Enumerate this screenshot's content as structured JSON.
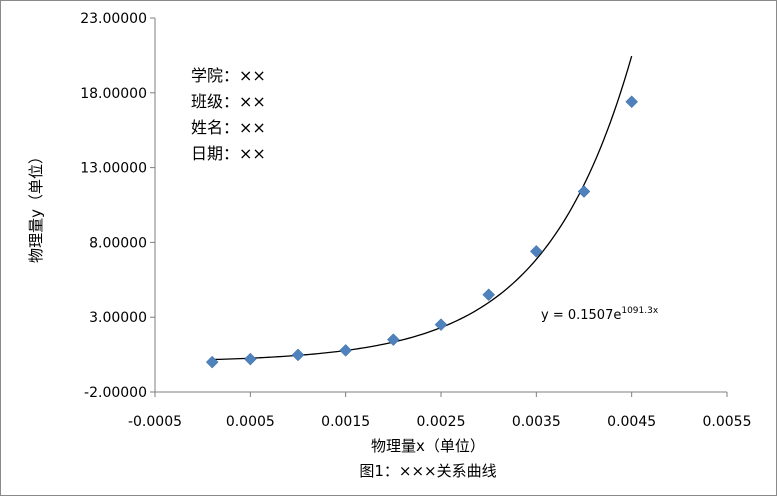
{
  "chart_data": {
    "type": "scatter",
    "xlabel": "物理量x（单位）",
    "ylabel": "物理量y（单位）",
    "caption": "图1：×××关系曲线",
    "xlim": [
      -0.0005,
      0.0055
    ],
    "ylim": [
      -2,
      23
    ],
    "x_ticks": [
      -0.0005,
      0.0005,
      0.0015,
      0.0025,
      0.0035,
      0.0045,
      0.0055
    ],
    "x_tick_labels": [
      "-0.0005",
      "0.0005",
      "0.0015",
      "0.0025",
      "0.0035",
      "0.0045",
      "0.0055"
    ],
    "y_ticks": [
      -2,
      3,
      8,
      13,
      18,
      23
    ],
    "y_tick_labels": [
      "-2.00000",
      "3.00000",
      "8.00000",
      "13.00000",
      "18.00000",
      "23.00000"
    ],
    "grid": false,
    "marker_color": "#4f81bd",
    "series": [
      {
        "x": [
          0.0001,
          0.0005,
          0.001,
          0.0015,
          0.002,
          0.0025,
          0.003,
          0.0035,
          0.004,
          0.0045
        ],
        "y": [
          0.0,
          0.2,
          0.48,
          0.78,
          1.5,
          2.5,
          4.5,
          7.4,
          11.4,
          17.4
        ]
      }
    ],
    "trendline": {
      "type": "exponential",
      "a": 0.1507,
      "b": 1091.3,
      "x_range": [
        0.0001,
        0.0045
      ],
      "label_main": "y = 0.1507e",
      "label_exp": "1091.3x"
    },
    "info_lines": [
      "学院：××",
      "班级：××",
      "姓名：××",
      "日期：××"
    ]
  }
}
